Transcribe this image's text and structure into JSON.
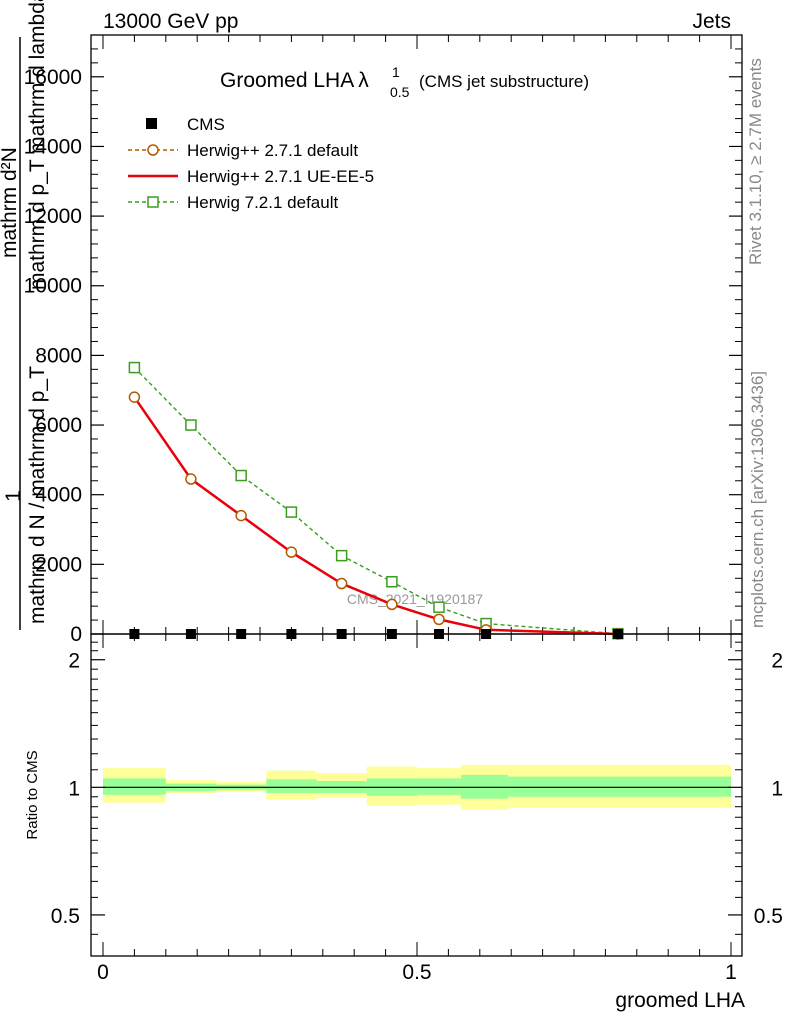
{
  "header": {
    "left": "13000 GeV pp",
    "right": "Jets"
  },
  "plot_title": {
    "main": "Groomed LHA",
    "lambda": "λ",
    "sup": "1",
    "sub": "0.5",
    "suffix": "(CMS jet substructure)"
  },
  "side_text": {
    "rivet": "Rivet 3.1.10, ≥ 2.7M events",
    "mcplots": "mcplots.cern.ch [arXiv:1306.3436]"
  },
  "watermark": "CMS_2021_I1920187",
  "colors": {
    "cms": "#000000",
    "herwig_default": "#b35a00",
    "herwig_ueee5": "#e8000b",
    "herwig7": "#3a9d1f",
    "band_inner": "#99ff99",
    "band_outer": "#ffff99"
  },
  "chart_data": [
    {
      "type": "line",
      "title": "Groomed LHA λ^1_0.5 (CMS jet substructure)",
      "ylabel": {
        "top_text": "1",
        "numerator": "mathrm d^2N",
        "denominator": "mathrm d N / mathrm d p_T mathrm d p_T mathrm d lambda",
        "overlap_left": "mathrm d²N",
        "overlap_right": "mathrm d p_T mathrm d lambda",
        "bottom": "mathrm d N / mathrm d p_T"
      },
      "ylim": [
        0,
        17200
      ],
      "xlim": [
        -0.02,
        1.02
      ],
      "yticks": [
        {
          "value": 0,
          "label": "0"
        },
        {
          "value": 2000,
          "label": "2000"
        },
        {
          "value": 4000,
          "label": "4000"
        },
        {
          "value": 6000,
          "label": "6000"
        },
        {
          "value": 8000,
          "label": "8000"
        },
        {
          "value": 10000,
          "label": "10000"
        },
        {
          "value": 12000,
          "label": "12000"
        },
        {
          "value": 14000,
          "label": "14000"
        },
        {
          "value": 16000,
          "label": "16000"
        }
      ],
      "legend_position": "top-left",
      "series": [
        {
          "name": "CMS",
          "style": "square",
          "x": [
            0.05,
            0.14,
            0.22,
            0.3,
            0.38,
            0.46,
            0.535,
            0.61,
            0.82
          ],
          "y": [
            0,
            0,
            0,
            0,
            0,
            0,
            0,
            0,
            0
          ]
        },
        {
          "name": "Herwig++ 2.7.1 default",
          "style": "circle-dashed",
          "x": [
            0.05,
            0.14,
            0.22,
            0.3,
            0.38,
            0.46,
            0.535,
            0.61,
            0.82
          ],
          "y": [
            6800,
            4450,
            3400,
            2350,
            1450,
            850,
            420,
            120,
            0
          ]
        },
        {
          "name": "Herwig++ 2.7.1 UE-EE-5",
          "style": "solid",
          "x": [
            0.05,
            0.14,
            0.22,
            0.3,
            0.38,
            0.46,
            0.535,
            0.61,
            0.82
          ],
          "y": [
            6800,
            4450,
            3400,
            2350,
            1450,
            850,
            420,
            120,
            0
          ]
        },
        {
          "name": "Herwig 7.2.1 default",
          "style": "square-dashed",
          "x": [
            0.05,
            0.14,
            0.22,
            0.3,
            0.38,
            0.46,
            0.535,
            0.61,
            0.82
          ],
          "y": [
            7650,
            6000,
            4550,
            3500,
            2250,
            1500,
            770,
            300,
            10
          ]
        }
      ]
    },
    {
      "type": "area",
      "ylabel": "Ratio to CMS",
      "xlabel": "groomed LHA",
      "ylim": [
        0.4,
        2.3
      ],
      "log_y": true,
      "yticks": [
        {
          "value": 0.5,
          "label": "0.5"
        },
        {
          "value": 1,
          "label": "1"
        },
        {
          "value": 2,
          "label": "2"
        }
      ],
      "xticks": [
        {
          "value": 0,
          "label": "0"
        },
        {
          "value": 0.5,
          "label": "0.5"
        },
        {
          "value": 1,
          "label": "1"
        }
      ],
      "bands": [
        {
          "x": [
            0.0,
            0.1
          ],
          "inner": [
            0.96,
            1.05
          ],
          "outer": [
            0.92,
            1.11
          ]
        },
        {
          "x": [
            0.1,
            0.18
          ],
          "inner": [
            0.98,
            1.02
          ],
          "outer": [
            0.97,
            1.04
          ]
        },
        {
          "x": [
            0.18,
            0.26
          ],
          "inner": [
            0.985,
            1.015
          ],
          "outer": [
            0.975,
            1.03
          ]
        },
        {
          "x": [
            0.26,
            0.34
          ],
          "inner": [
            0.97,
            1.045
          ],
          "outer": [
            0.935,
            1.095
          ]
        },
        {
          "x": [
            0.34,
            0.42
          ],
          "inner": [
            0.97,
            1.035
          ],
          "outer": [
            0.945,
            1.08
          ]
        },
        {
          "x": [
            0.42,
            0.5
          ],
          "inner": [
            0.955,
            1.05
          ],
          "outer": [
            0.905,
            1.12
          ]
        },
        {
          "x": [
            0.5,
            0.57
          ],
          "inner": [
            0.96,
            1.05
          ],
          "outer": [
            0.91,
            1.11
          ]
        },
        {
          "x": [
            0.57,
            0.645
          ],
          "inner": [
            0.94,
            1.07
          ],
          "outer": [
            0.885,
            1.13
          ]
        },
        {
          "x": [
            0.645,
            1.0
          ],
          "inner": [
            0.95,
            1.06
          ],
          "outer": [
            0.895,
            1.13
          ]
        }
      ]
    }
  ]
}
